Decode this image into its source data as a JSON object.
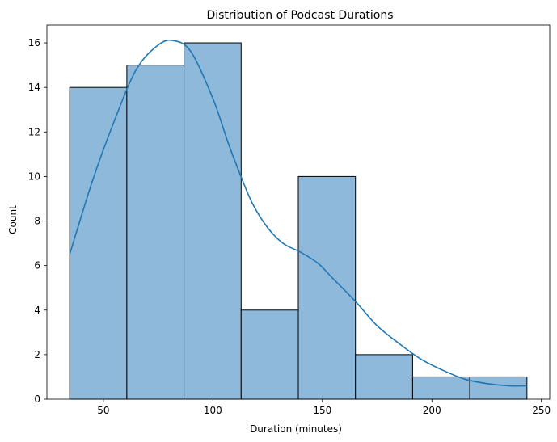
{
  "chart_data": {
    "type": "bar",
    "subtype": "histogram",
    "title": "Distribution of Podcast Durations",
    "xlabel": "Duration (minutes)",
    "ylabel": "Count",
    "bin_edges": [
      34.6,
      60.7,
      86.8,
      112.9,
      139.0,
      165.1,
      191.2,
      217.3,
      243.4
    ],
    "values": [
      14,
      15,
      16,
      4,
      10,
      2,
      1,
      1
    ],
    "xlim": [
      24.2,
      253.8
    ],
    "ylim": [
      0,
      16.8
    ],
    "xticks": [
      50,
      100,
      150,
      200,
      250
    ],
    "yticks": [
      0,
      2,
      4,
      6,
      8,
      10,
      12,
      14,
      16
    ],
    "kde": {
      "x": [
        34.6,
        45,
        55,
        65,
        75,
        82,
        90,
        100,
        107,
        112,
        118,
        125,
        132,
        140,
        148,
        155,
        165,
        175,
        185,
        195,
        205,
        215,
        225,
        235,
        243.4
      ],
      "y": [
        6.5,
        9.8,
        12.5,
        14.8,
        15.9,
        16.1,
        15.6,
        13.5,
        11.5,
        10.2,
        8.8,
        7.7,
        7.0,
        6.6,
        6.1,
        5.4,
        4.4,
        3.3,
        2.5,
        1.8,
        1.3,
        0.9,
        0.7,
        0.6,
        0.6
      ]
    },
    "grid": false,
    "colors": {
      "bar_fill": "#8fb9da",
      "bar_edge": "#000000",
      "kde_line": "#1f77b4"
    }
  }
}
